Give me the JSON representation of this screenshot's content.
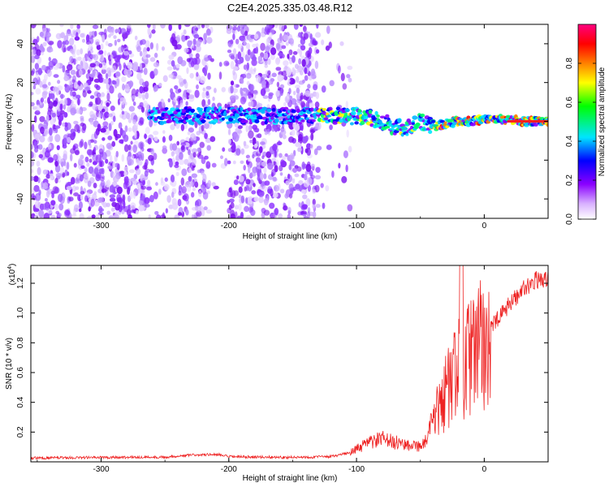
{
  "title": "C2E4.2025.335.03.48.R12",
  "chart_data": [
    {
      "type": "heatmap",
      "title": "C2E4.2025.335.03.48.R12",
      "xlabel": "Height of straight line (km)",
      "ylabel": "Frequency (Hz)",
      "xlim": [
        -355,
        50
      ],
      "ylim": [
        -50,
        50
      ],
      "x_ticks": [
        -300,
        -200,
        -100,
        0
      ],
      "x_tick_labels": [
        "-300",
        "-200",
        "-100",
        "0"
      ],
      "y_ticks": [
        -40,
        -20,
        0,
        20,
        40
      ],
      "y_tick_labels": [
        "-40",
        "-20",
        "0",
        "20",
        "40"
      ],
      "colorbar": {
        "label": "Normalized spectral amplitude",
        "range": [
          0,
          1
        ],
        "ticks": [
          0.0,
          0.2,
          0.4,
          0.6,
          0.8
        ],
        "tick_labels": [
          "0.0",
          "0.2",
          "0.4",
          "0.6",
          "0.8"
        ],
        "colors": [
          "#ffffff",
          "#8a00ff",
          "#0000ff",
          "#00e5ff",
          "#00ff00",
          "#ffff00",
          "#ff8000",
          "#ff0000",
          "#ff0080"
        ]
      },
      "ridge": {
        "x": [
          -260,
          -200,
          -130,
          -110,
          -90,
          -80,
          -70,
          -60,
          -50,
          -40,
          -30,
          -20,
          -10,
          0,
          10,
          20,
          30,
          40,
          50
        ],
        "y": [
          3,
          3,
          3,
          3,
          2,
          0,
          -3,
          -3,
          0,
          -3,
          -1,
          0,
          0,
          1,
          1,
          1,
          0,
          0,
          0
        ]
      }
    },
    {
      "type": "line",
      "xlabel": "Height of straight line (km)",
      "ylabel": "SNR (10 * v/v)",
      "y_multiplier": "(x10",
      "y_multiplier_exp": "4",
      "y_multiplier_close": ")",
      "xlim": [
        -355,
        50
      ],
      "ylim": [
        0,
        13200
      ],
      "x_ticks": [
        -300,
        -200,
        -100,
        0
      ],
      "x_tick_labels": [
        "-300",
        "-200",
        "-100",
        "0"
      ],
      "y_ticks": [
        2000,
        4000,
        6000,
        8000,
        10000,
        12000
      ],
      "y_tick_labels": [
        "0.2",
        "0.4",
        "0.6",
        "0.8",
        "1.0",
        "1.2"
      ],
      "series": [
        {
          "name": "SNR",
          "color": "#ee2222",
          "x": [
            -355,
            -300,
            -250,
            -230,
            -210,
            -200,
            -150,
            -120,
            -100,
            -90,
            -80,
            -70,
            -60,
            -50,
            -45,
            -40,
            -35,
            -30,
            -25,
            -20,
            -15,
            -10,
            -5,
            0,
            10,
            20,
            30,
            40,
            50
          ],
          "y": [
            250,
            300,
            320,
            450,
            500,
            350,
            300,
            350,
            700,
            1100,
            1300,
            1100,
            1000,
            900,
            1200,
            2500,
            4000,
            5000,
            5800,
            6500,
            7000,
            7500,
            8000,
            8500,
            9500,
            10600,
            11600,
            12200,
            12300
          ]
        }
      ]
    }
  ]
}
